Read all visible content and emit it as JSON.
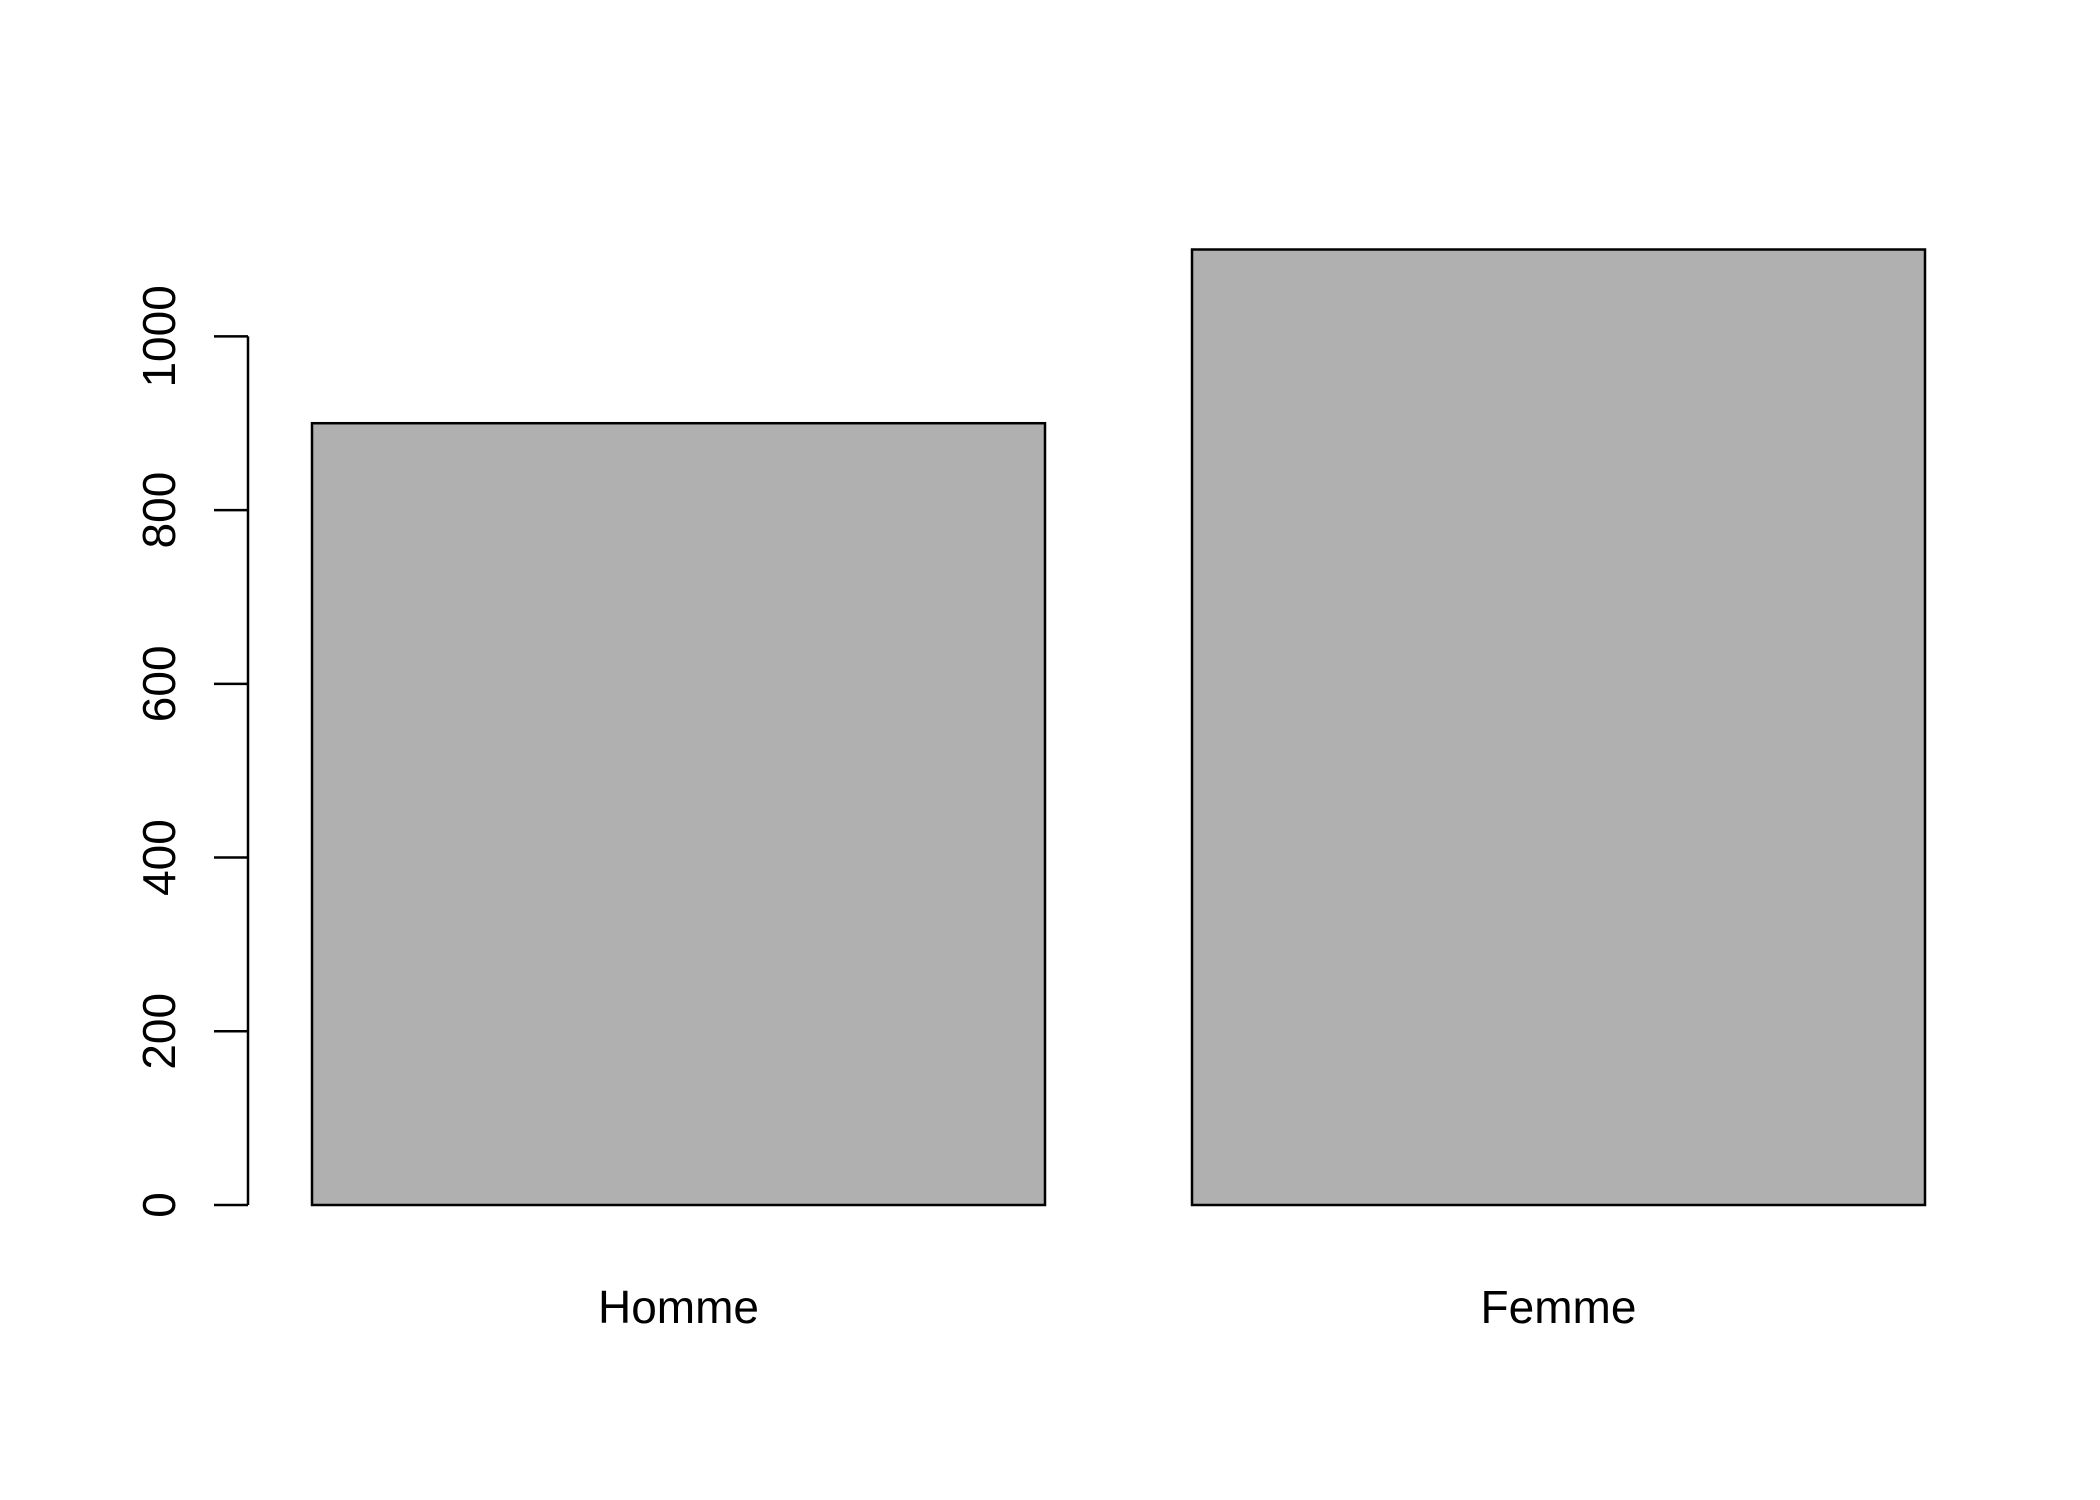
{
  "chart_data": {
    "type": "bar",
    "categories": [
      "Homme",
      "Femme"
    ],
    "values": [
      900,
      1100
    ],
    "color": "#b0b0b0",
    "ylim": [
      0,
      1100
    ],
    "yticks": [
      0,
      200,
      400,
      600,
      800,
      1000
    ]
  }
}
